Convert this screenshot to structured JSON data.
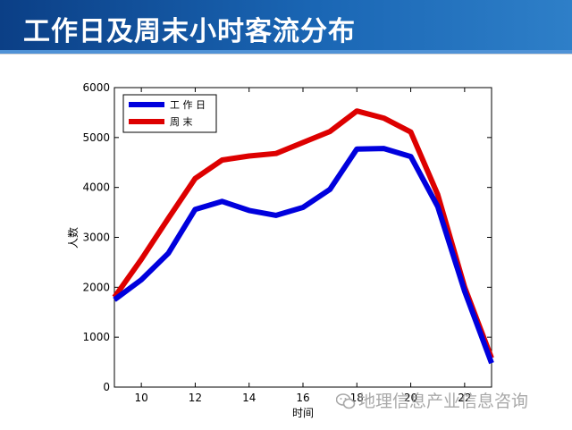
{
  "slide": {
    "title": "工作日及周末小时客流分布"
  },
  "watermark": {
    "text": "地理信息产业信息咨询",
    "icon": "wechat-icon"
  },
  "colors": {
    "title_bar": "#1a66b4",
    "workday": "#0000dd",
    "weekend": "#dd0000"
  },
  "chart_data": {
    "type": "line",
    "title": "",
    "xlabel": "时间",
    "ylabel": "人数",
    "xlim": [
      9,
      23
    ],
    "ylim": [
      0,
      6000
    ],
    "xticks": [
      10,
      12,
      14,
      16,
      18,
      20,
      22
    ],
    "yticks": [
      0,
      1000,
      2000,
      3000,
      4000,
      5000,
      6000
    ],
    "grid": false,
    "legend_position": "top-left",
    "x": [
      9,
      10,
      11,
      12,
      13,
      14,
      15,
      16,
      17,
      18,
      19,
      20,
      21,
      22,
      23
    ],
    "series": [
      {
        "name": "工 作 日",
        "color": "#0000dd",
        "values": [
          1750,
          2150,
          2680,
          3560,
          3720,
          3540,
          3440,
          3600,
          3960,
          4770,
          4780,
          4620,
          3620,
          1920,
          480
        ]
      },
      {
        "name": "周 末",
        "color": "#dd0000",
        "values": [
          1800,
          2560,
          3380,
          4180,
          4550,
          4630,
          4680,
          4900,
          5120,
          5530,
          5390,
          5110,
          3860,
          2000,
          580
        ]
      }
    ]
  }
}
